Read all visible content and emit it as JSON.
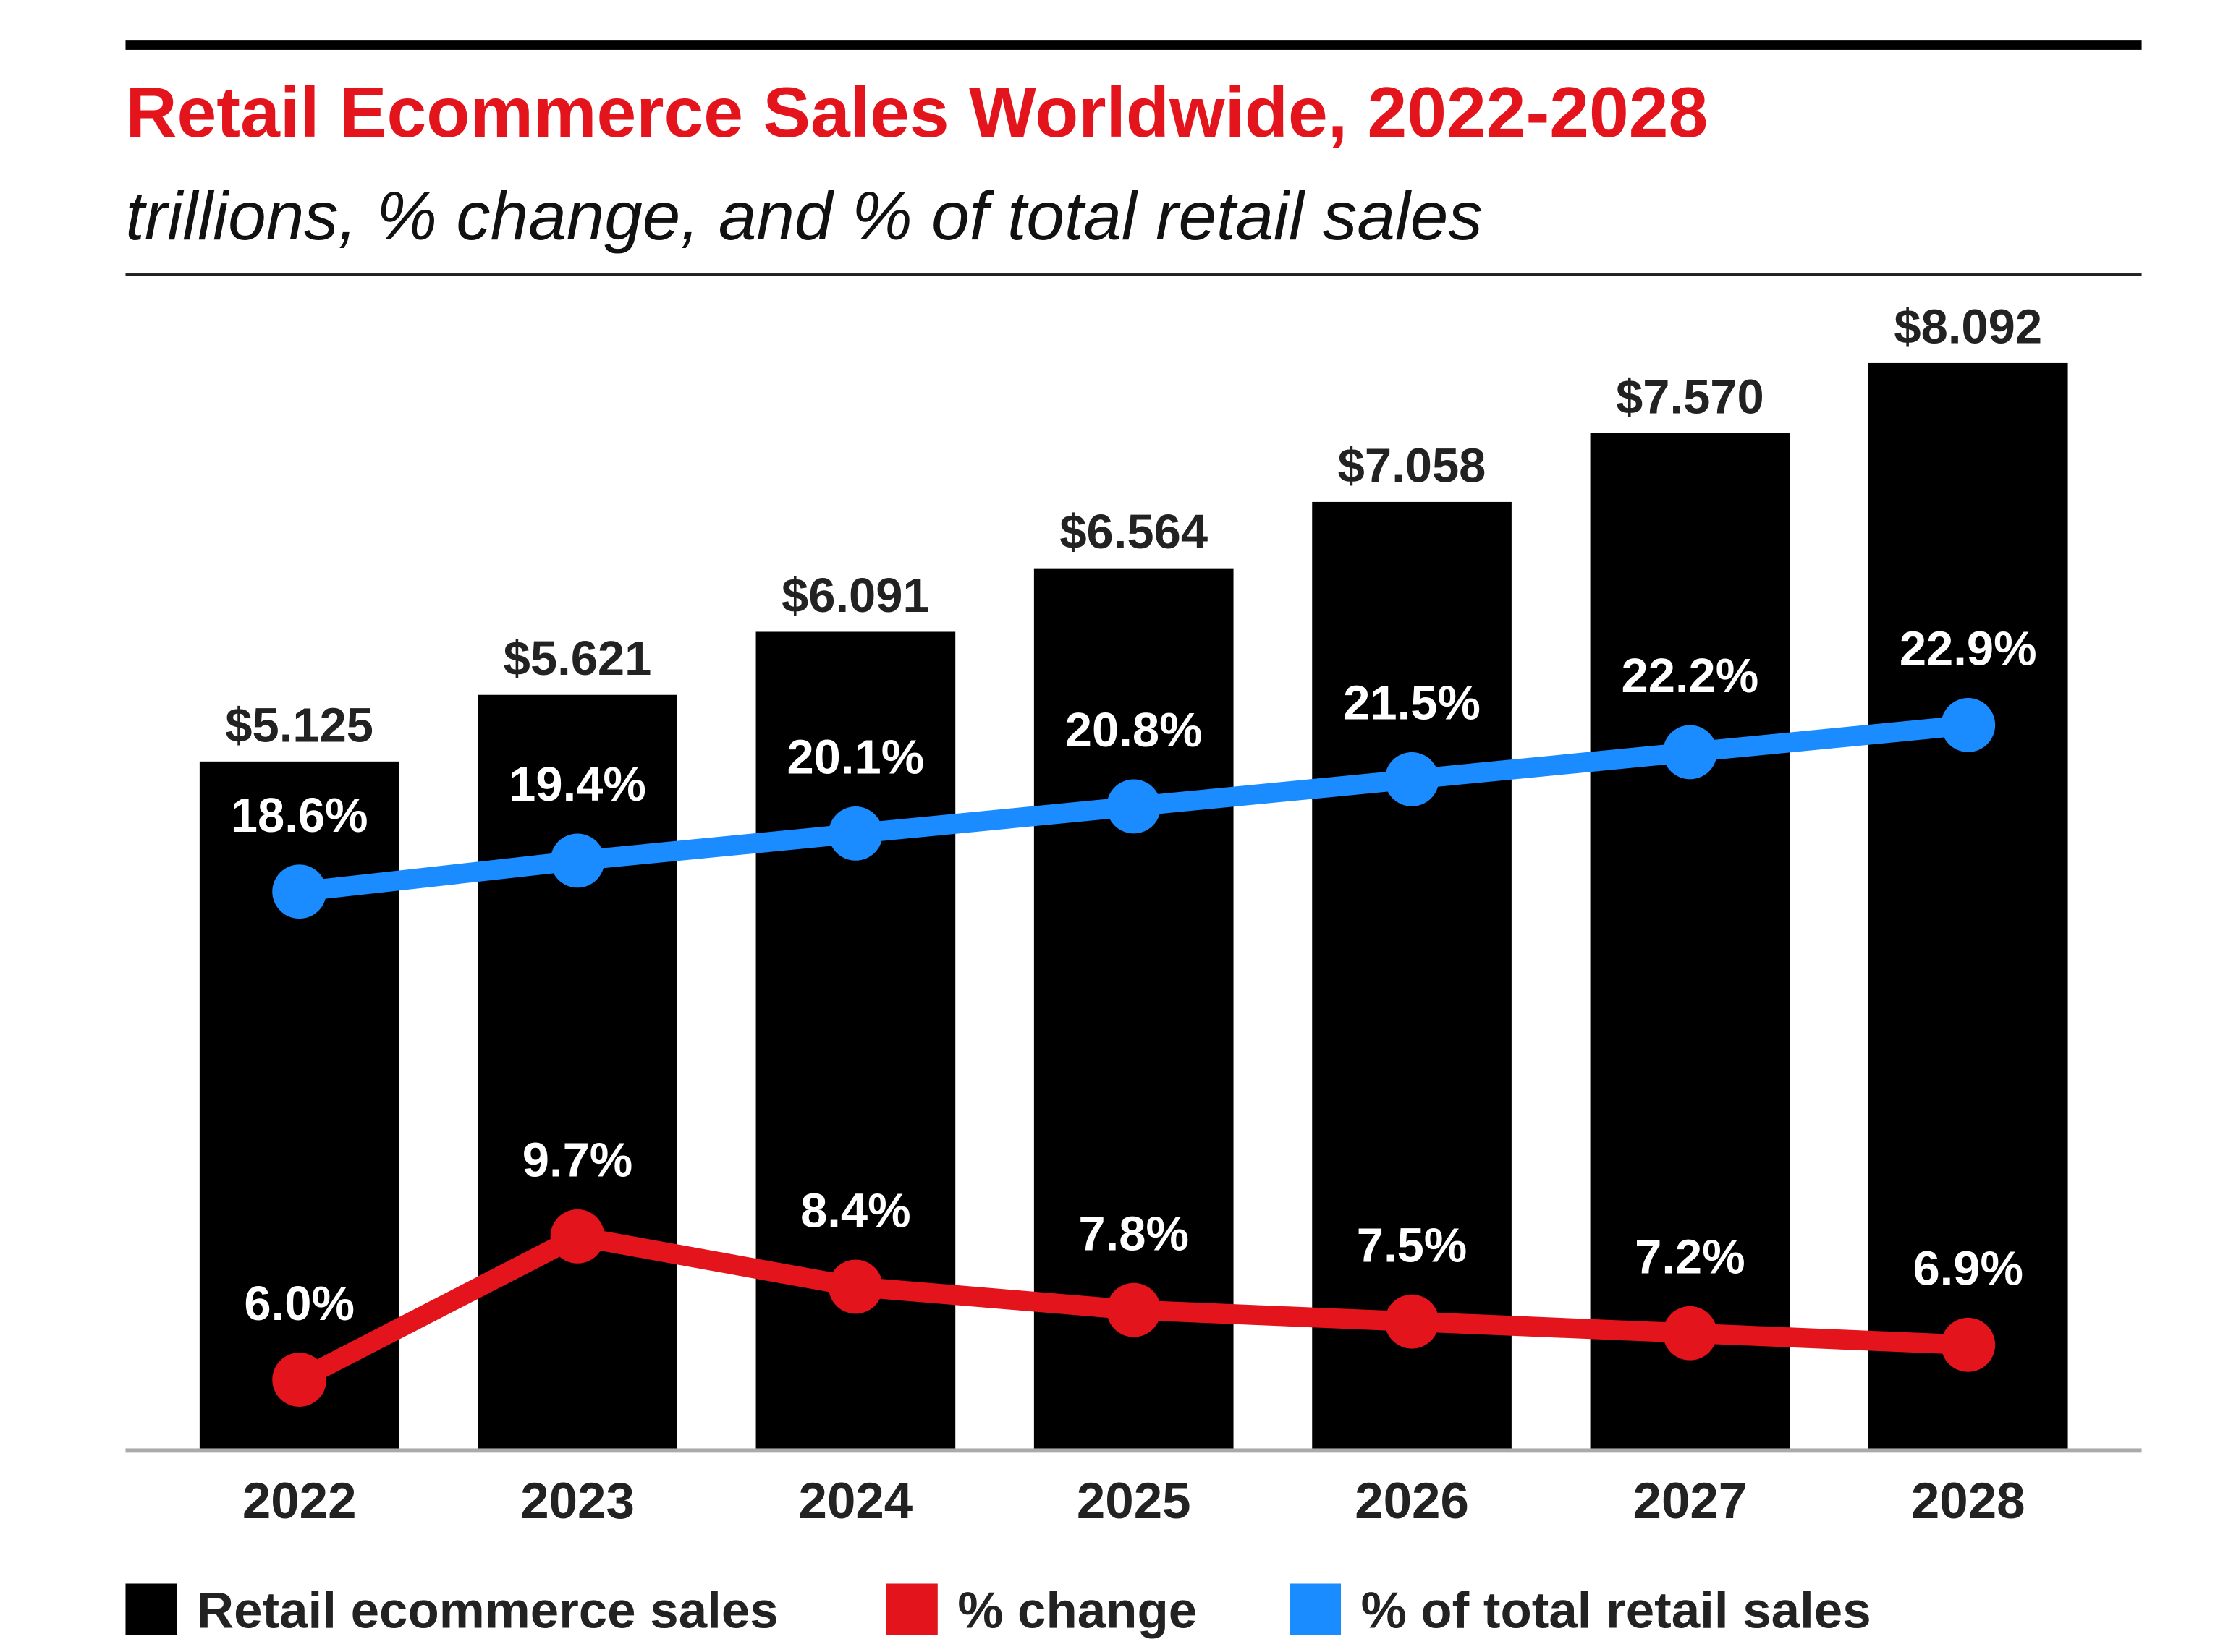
{
  "chart_data": {
    "type": "bar",
    "title": "Retail Ecommerce Sales Worldwide, 2022-2028",
    "subtitle": "trillions, % change, and % of total retail sales",
    "categories": [
      "2022",
      "2023",
      "2024",
      "2025",
      "2026",
      "2027",
      "2028"
    ],
    "series": [
      {
        "name": "Retail ecommerce sales",
        "type": "bar",
        "color": "#000000",
        "values": [
          5.125,
          5.621,
          6.091,
          6.564,
          7.058,
          7.57,
          8.092
        ],
        "labels": [
          "$5.125",
          "$5.621",
          "$6.091",
          "$6.564",
          "$7.058",
          "$7.570",
          "$8.092"
        ]
      },
      {
        "name": "% change",
        "type": "line",
        "color": "#e3141b",
        "values": [
          6.0,
          9.7,
          8.4,
          7.8,
          7.5,
          7.2,
          6.9
        ],
        "labels": [
          "6.0%",
          "9.7%",
          "8.4%",
          "7.8%",
          "7.5%",
          "7.2%",
          "6.9%"
        ]
      },
      {
        "name": "% of total retail sales",
        "type": "line",
        "color": "#1a8cff",
        "values": [
          18.6,
          19.4,
          20.1,
          20.8,
          21.5,
          22.2,
          22.9
        ],
        "labels": [
          "18.6%",
          "19.4%",
          "20.1%",
          "20.8%",
          "21.5%",
          "22.2%",
          "22.9%"
        ]
      }
    ],
    "grid": false,
    "legend": "bottom"
  }
}
